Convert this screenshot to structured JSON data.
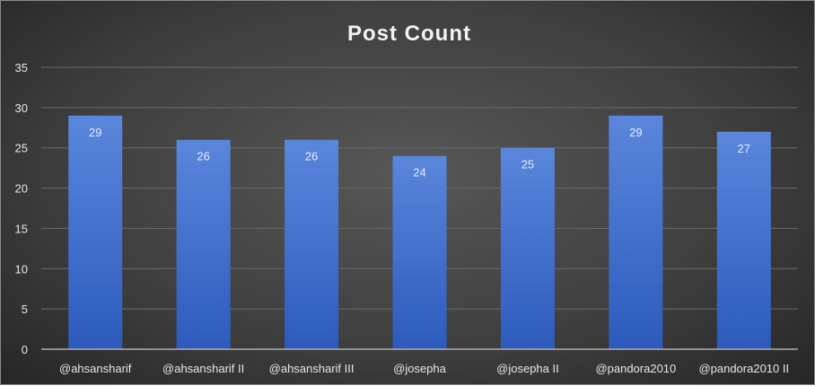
{
  "chart_data": {
    "type": "bar",
    "title": "Post Count",
    "categories": [
      "@ahsansharif",
      "@ahsansharif II",
      "@ahsansharif III",
      "@josepha",
      "@josepha II",
      "@pandora2010",
      "@pandora2010 II"
    ],
    "values": [
      29,
      26,
      26,
      24,
      25,
      29,
      27
    ],
    "ylim": [
      0,
      35
    ],
    "yticks": [
      0,
      5,
      10,
      15,
      20,
      25,
      30,
      35
    ],
    "grid": true,
    "data_labels": true,
    "colors": {
      "bar_top": "#5a86db",
      "bar_bottom": "#2d5bbd",
      "text": "#e6e6e6",
      "grid": "#6a6a6a"
    }
  }
}
